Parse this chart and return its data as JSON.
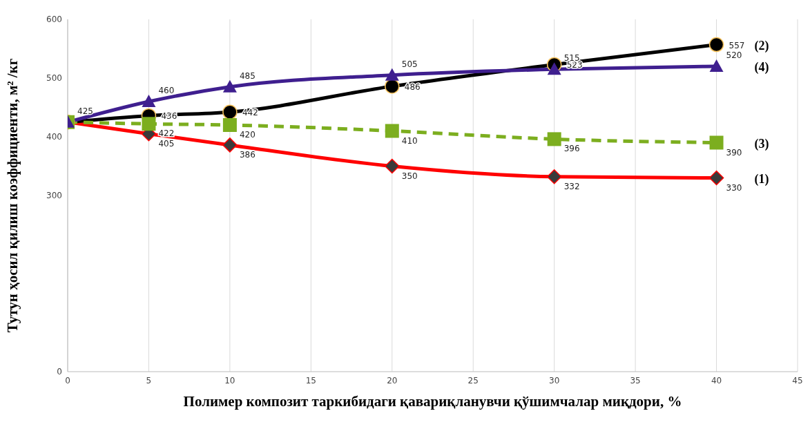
{
  "chart_data": {
    "type": "line",
    "xlabel": "Полимер композит таркибидаги қавариқланувчи қўшимчалар миқдори, %",
    "ylabel": "Тутун ҳосил қилиш коэффициенти, м² /кг",
    "x": [
      0,
      5,
      10,
      20,
      30,
      40
    ],
    "series": [
      {
        "name": "(1)",
        "color": "#ff0000",
        "marker": "diamond",
        "line_style": "solid",
        "values": [
          425,
          405,
          386,
          350,
          332,
          330
        ],
        "value_labels": [
          "425",
          "405",
          "386",
          "350",
          "332",
          "330"
        ]
      },
      {
        "name": "(2)",
        "color": "#000000",
        "marker": "circle",
        "line_style": "solid",
        "values": [
          425,
          436,
          442,
          486,
          523,
          557
        ],
        "value_labels": [
          null,
          "436",
          "442",
          "486",
          "523",
          "557"
        ]
      },
      {
        "name": "(3)",
        "color": "#7cae1f",
        "marker": "square",
        "line_style": "dashed",
        "values": [
          425,
          422,
          420,
          410,
          396,
          390
        ],
        "value_labels": [
          null,
          "422",
          "420",
          "410",
          "396",
          "390"
        ]
      },
      {
        "name": "(4)",
        "color": "#3f1f8f",
        "marker": "triangle",
        "line_style": "solid",
        "values": [
          425,
          460,
          485,
          505,
          515,
          520
        ],
        "value_labels": [
          null,
          "460",
          "485",
          "505",
          "515",
          "520"
        ]
      }
    ],
    "xlim": [
      0,
      45
    ],
    "xticks": [
      0,
      5,
      10,
      15,
      20,
      25,
      30,
      35,
      40,
      45
    ],
    "ylim": [
      0,
      600
    ],
    "yticks": [
      0,
      300,
      400,
      500,
      600
    ],
    "grid": "x"
  }
}
